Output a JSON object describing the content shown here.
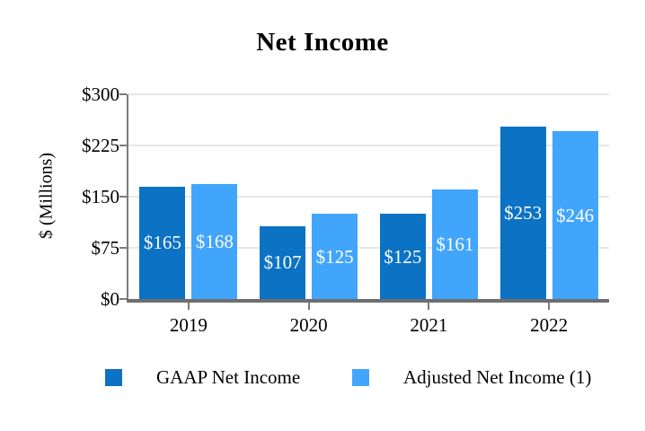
{
  "chart_data": {
    "type": "bar",
    "title": "Net Income",
    "ylabel": "$ (Millions)",
    "xlabel": "",
    "categories": [
      "2019",
      "2020",
      "2021",
      "2022"
    ],
    "series": [
      {
        "name": "GAAP Net Income",
        "color": "#0B72C4",
        "values": [
          165,
          107,
          125,
          253
        ]
      },
      {
        "name": "Adjusted Net Income (1)",
        "color": "#42A5FC",
        "values": [
          168,
          125,
          161,
          246
        ]
      }
    ],
    "ylim": [
      0,
      300
    ],
    "yticks": [
      0,
      75,
      150,
      225,
      300
    ],
    "ytick_labels": [
      "$0",
      "$75",
      "$150",
      "$225",
      "$300"
    ],
    "value_prefix": "$",
    "bar_label_color": "#FFFFFF",
    "grid": true,
    "legend_position": "bottom"
  },
  "style": {
    "axis_color": "#7C7C7C",
    "bottom_axis_color": "#6E6E6E",
    "grid_color": "#E7E7E7",
    "text_color": "#000000",
    "background": "#FFFFFF"
  }
}
